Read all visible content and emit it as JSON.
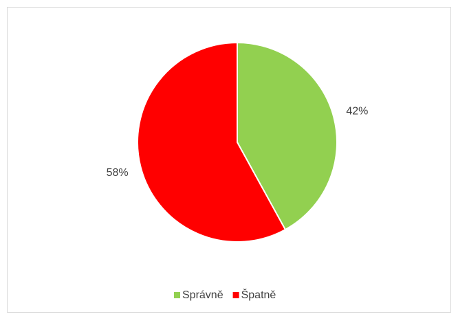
{
  "chart_data": {
    "type": "pie",
    "categories": [
      "Správně",
      "Špatně"
    ],
    "values": [
      42,
      58
    ],
    "value_labels": [
      "42%",
      "58%"
    ],
    "colors": [
      "#92d050",
      "#ff0000"
    ],
    "legend": "bottom"
  }
}
